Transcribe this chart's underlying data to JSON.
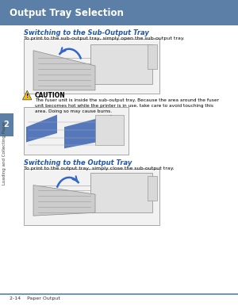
{
  "bg_color": "#ffffff",
  "header_bg": "#5b7fa6",
  "header_text": "Output Tray Selection",
  "header_text_color": "#ffffff",
  "sidebar_bg": "#5b7fa6",
  "sidebar_text": "Loading and Collecting Paper",
  "sidebar_number": "2",
  "section1_title": "Switching to the Sub-Output Tray",
  "section1_body": "To print to the sub-output tray, simply open the sub-output tray.",
  "caution_title": "CAUTION",
  "caution_body": "The fuser unit is inside the sub-output tray. Because the area around the fuser\nunit becomes hot while the printer is in use, take care to avoid touching this\narea. Doing so may cause burns.",
  "section2_title": "Switching to the Output Tray",
  "section2_body": "To print to the output tray, simply close the sub-output tray.",
  "footer_text": "2-14    Paper Output",
  "footer_line_color": "#5b7fa6",
  "title_color": "#2255aa",
  "body_color": "#000000",
  "caution_title_color": "#000000"
}
